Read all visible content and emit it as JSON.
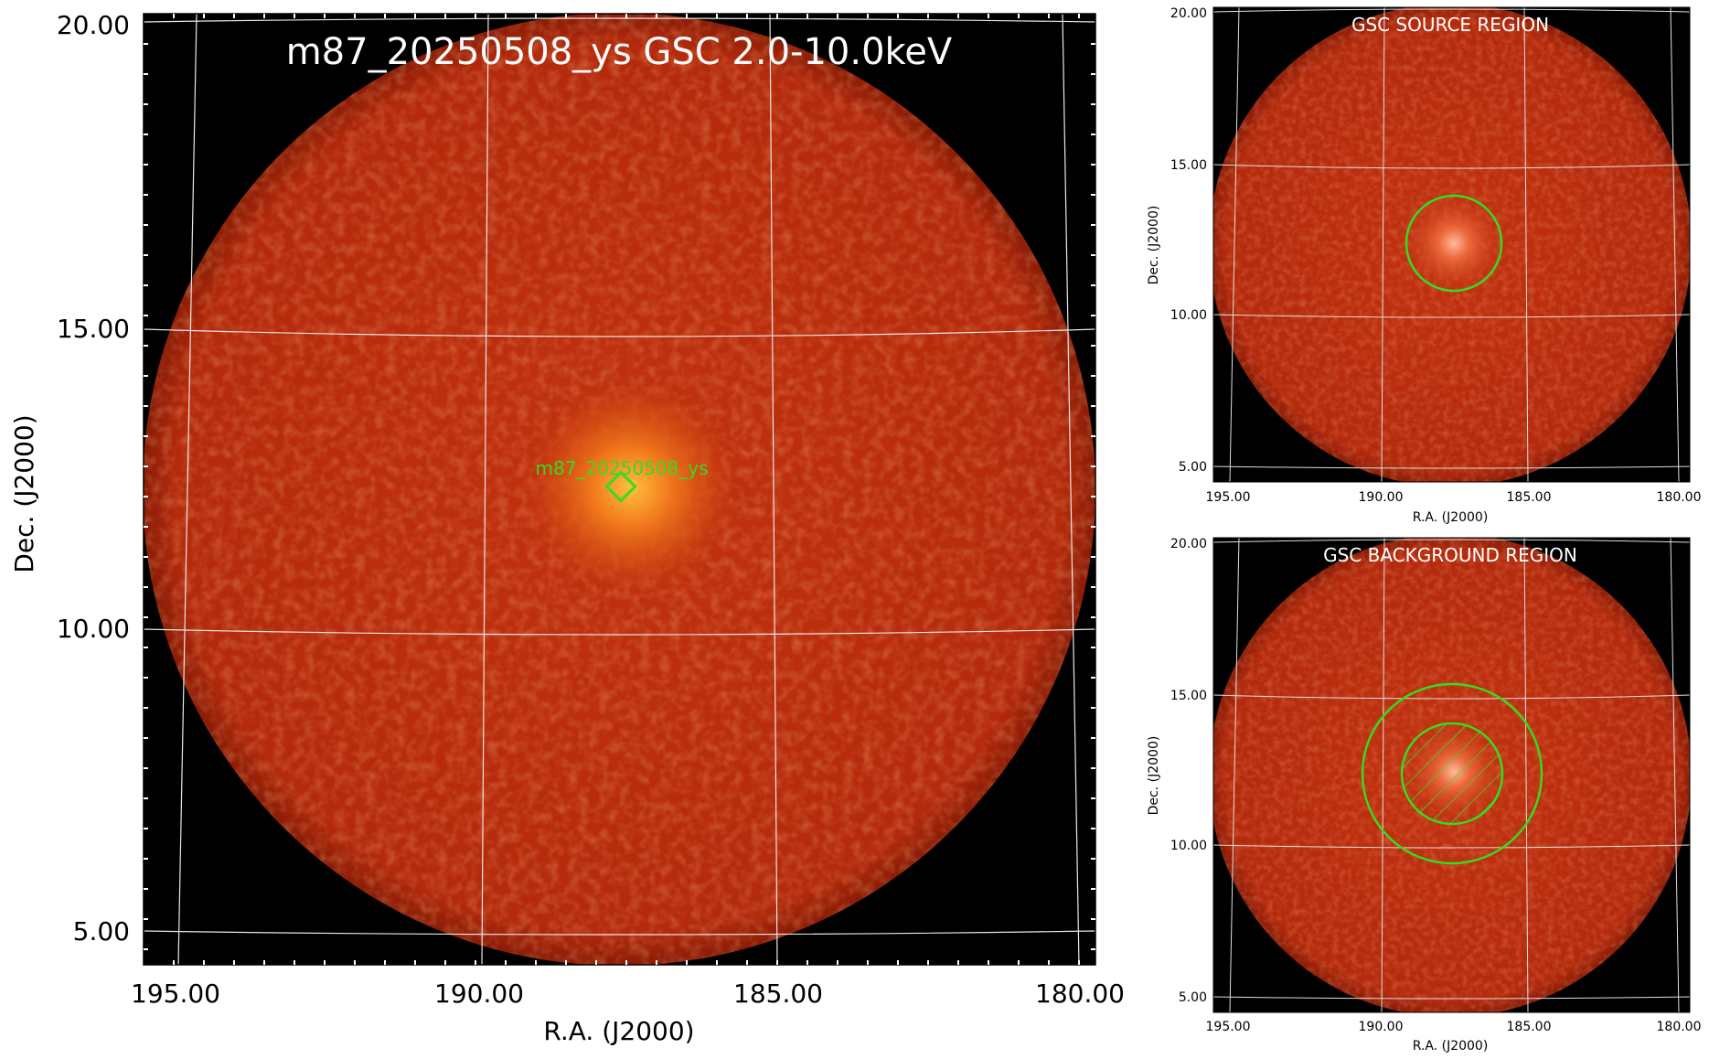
{
  "main": {
    "title": "m87_20250508_ys GSC 2.0-10.0keV",
    "source_label": "m87_20250508_ys",
    "xlabel": "R.A. (J2000)",
    "ylabel": "Dec. (J2000)",
    "x_ticks": [
      "195.00",
      "190.00",
      "185.00",
      "180.00"
    ],
    "y_ticks": [
      "20.00",
      "15.00",
      "10.00",
      "5.00"
    ]
  },
  "source_panel": {
    "title": "GSC SOURCE REGION",
    "xlabel": "R.A. (J2000)",
    "ylabel": "Dec. (J2000)",
    "x_ticks": [
      "195.00",
      "190.00",
      "185.00",
      "180.00"
    ],
    "y_ticks": [
      "20.00",
      "15.00",
      "10.00",
      "5.00"
    ]
  },
  "background_panel": {
    "title": "GSC BACKGROUND REGION",
    "xlabel": "R.A. (J2000)",
    "ylabel": "Dec. (J2000)",
    "x_ticks": [
      "195.00",
      "190.00",
      "185.00",
      "180.00"
    ],
    "y_ticks": [
      "20.00",
      "15.00",
      "10.00",
      "5.00"
    ]
  },
  "colors": {
    "disk": "#b82a0c",
    "hotspot": "#ffae2a",
    "region": "#33dd22",
    "grid": "#e8e8e8"
  }
}
